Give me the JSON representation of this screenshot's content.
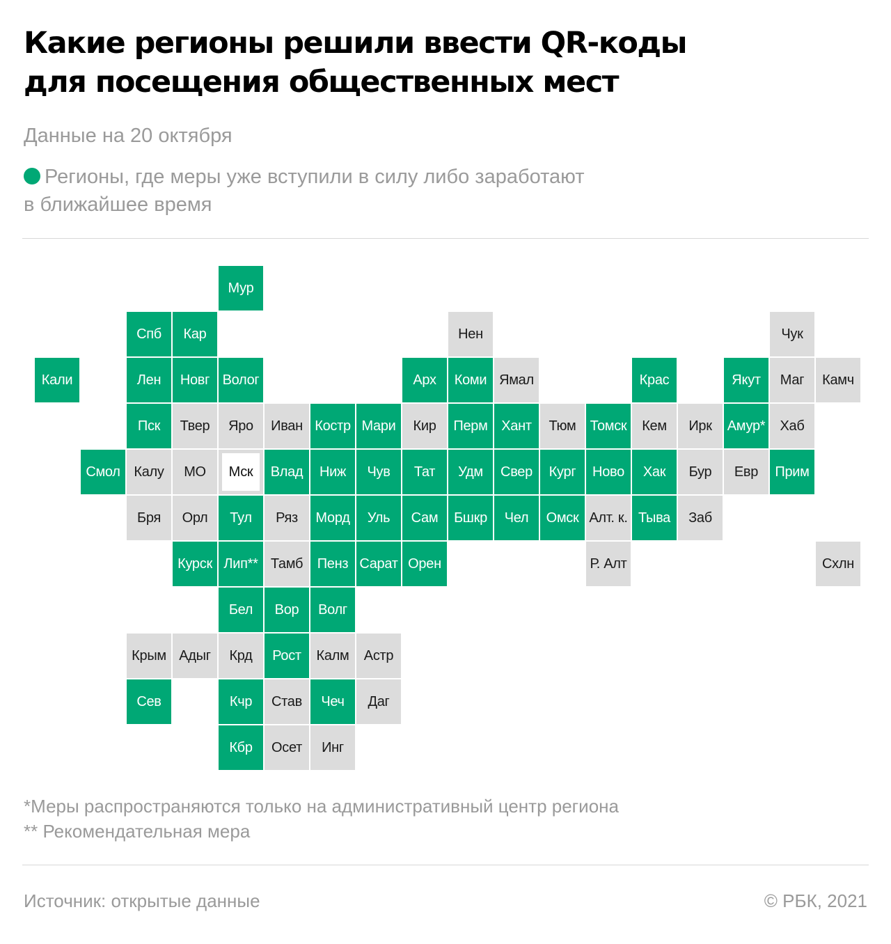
{
  "header": {
    "title_line1": "Какие регионы решили ввести QR-коды",
    "title_line2": "для посещения общественных мест",
    "subtitle": "Данные на 20 октября"
  },
  "legend": {
    "color": "#00a875",
    "text_line1": "Регионы, где меры уже вступили в силу либо заработают",
    "text_line2": "в ближайшее время"
  },
  "colors": {
    "active": "#00a875",
    "inactive": "#dcdcdc"
  },
  "map": {
    "rows": [
      [
        {
          "label": "Мур",
          "status": "active"
        }
      ],
      [
        {
          "label": "Спб",
          "status": "active"
        },
        {
          "label": "Кар",
          "status": "active"
        },
        {
          "label": "Нен",
          "status": "inactive"
        },
        {
          "label": "Чук",
          "status": "inactive"
        }
      ],
      [
        {
          "label": "Кали",
          "status": "active"
        },
        {
          "label": "Лен",
          "status": "active"
        },
        {
          "label": "Новг",
          "status": "active"
        },
        {
          "label": "Волог",
          "status": "active"
        },
        {
          "label": "Арх",
          "status": "active"
        },
        {
          "label": "Коми",
          "status": "active"
        },
        {
          "label": "Ямал",
          "status": "inactive"
        },
        {
          "label": "Крас",
          "status": "active"
        },
        {
          "label": "Якут",
          "status": "active"
        },
        {
          "label": "Маг",
          "status": "inactive"
        },
        {
          "label": "Камч",
          "status": "inactive"
        }
      ],
      [
        {
          "label": "Пск",
          "status": "active"
        },
        {
          "label": "Твер",
          "status": "inactive"
        },
        {
          "label": "Яро",
          "status": "inactive"
        },
        {
          "label": "Иван",
          "status": "inactive"
        },
        {
          "label": "Костр",
          "status": "active"
        },
        {
          "label": "Мари",
          "status": "active"
        },
        {
          "label": "Кир",
          "status": "inactive"
        },
        {
          "label": "Перм",
          "status": "active"
        },
        {
          "label": "Хант",
          "status": "active"
        },
        {
          "label": "Тюм",
          "status": "inactive"
        },
        {
          "label": "Томск",
          "status": "active"
        },
        {
          "label": "Кем",
          "status": "inactive"
        },
        {
          "label": "Ирк",
          "status": "inactive"
        },
        {
          "label": "Амур*",
          "status": "active"
        },
        {
          "label": "Хаб",
          "status": "inactive"
        }
      ],
      [
        {
          "label": "Смол",
          "status": "active"
        },
        {
          "label": "Калу",
          "status": "inactive"
        },
        {
          "label": "МО",
          "status": "inactive"
        },
        {
          "label": "Мск",
          "status": "capital"
        },
        {
          "label": "Влад",
          "status": "active"
        },
        {
          "label": "Ниж",
          "status": "active"
        },
        {
          "label": "Чув",
          "status": "active"
        },
        {
          "label": "Тат",
          "status": "active"
        },
        {
          "label": "Удм",
          "status": "active"
        },
        {
          "label": "Свер",
          "status": "active"
        },
        {
          "label": "Кург",
          "status": "active"
        },
        {
          "label": "Ново",
          "status": "active"
        },
        {
          "label": "Хак",
          "status": "active"
        },
        {
          "label": "Бур",
          "status": "inactive"
        },
        {
          "label": "Евр",
          "status": "inactive"
        },
        {
          "label": "Прим",
          "status": "active"
        }
      ],
      [
        {
          "label": "Бря",
          "status": "inactive"
        },
        {
          "label": "Орл",
          "status": "inactive"
        },
        {
          "label": "Тул",
          "status": "active"
        },
        {
          "label": "Ряз",
          "status": "inactive"
        },
        {
          "label": "Морд",
          "status": "active"
        },
        {
          "label": "Уль",
          "status": "active"
        },
        {
          "label": "Сам",
          "status": "active"
        },
        {
          "label": "Бшкр",
          "status": "active"
        },
        {
          "label": "Чел",
          "status": "active"
        },
        {
          "label": "Омск",
          "status": "active"
        },
        {
          "label": "Алт. к.",
          "status": "inactive"
        },
        {
          "label": "Тыва",
          "status": "active"
        },
        {
          "label": "Заб",
          "status": "inactive"
        }
      ],
      [
        {
          "label": "Курск",
          "status": "active"
        },
        {
          "label": "Лип**",
          "status": "active"
        },
        {
          "label": "Тамб",
          "status": "inactive"
        },
        {
          "label": "Пенз",
          "status": "active"
        },
        {
          "label": "Сарат",
          "status": "active"
        },
        {
          "label": "Орен",
          "status": "active"
        },
        {
          "label": "Р. Алт",
          "status": "inactive"
        },
        {
          "label": "Схлн",
          "status": "inactive"
        }
      ],
      [
        {
          "label": "Бел",
          "status": "active"
        },
        {
          "label": "Вор",
          "status": "active"
        },
        {
          "label": "Волг",
          "status": "active"
        }
      ],
      [
        {
          "label": "Крым",
          "status": "inactive"
        },
        {
          "label": "Адыг",
          "status": "inactive"
        },
        {
          "label": "Крд",
          "status": "inactive"
        },
        {
          "label": "Рост",
          "status": "active"
        },
        {
          "label": "Калм",
          "status": "inactive"
        },
        {
          "label": "Астр",
          "status": "inactive"
        }
      ],
      [
        {
          "label": "Сев",
          "status": "active"
        },
        {
          "label": "Кчр",
          "status": "active"
        },
        {
          "label": "Став",
          "status": "inactive"
        },
        {
          "label": "Чеч",
          "status": "active"
        },
        {
          "label": "Даг",
          "status": "inactive"
        }
      ],
      [
        {
          "label": "Кбр",
          "status": "active"
        },
        {
          "label": "Осет",
          "status": "inactive"
        },
        {
          "label": "Инг",
          "status": "inactive"
        }
      ]
    ]
  },
  "notes": {
    "note1": "*Меры распространяются только на административный центр региона",
    "note2": "** Рекомендательная мера"
  },
  "footer": {
    "source": "Источник:  открытые данные",
    "copyright": "©  РБК, 2021"
  }
}
